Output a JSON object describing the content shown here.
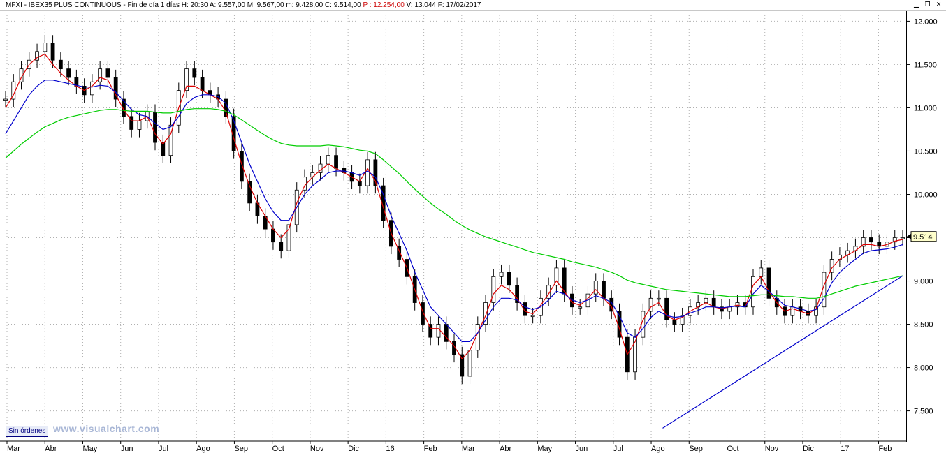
{
  "header": {
    "symbol": "MFXI",
    "name": "IBEX35 PLUS CONTINUOUS",
    "period": "Fin de día 1 días",
    "h": "H: 20:30",
    "a": "A: 9.557,00",
    "m": "M: 9.567,00",
    "mi": "m: 9.428,00",
    "c": "C: 9.514,00",
    "p": "P : 12.254,00",
    "v": "V: 13.044",
    "f": "F: 17/02/2017"
  },
  "buttons": {
    "sin_ordenes": "Sin órdenes"
  },
  "watermark": "www.visualchart.com",
  "colors": {
    "candles": "#000000",
    "ma_fast": "#dd0000",
    "ma_mid": "#0000cc",
    "ma_slow": "#00cc00",
    "trendline": "#0000cc",
    "grid": "#b0b0b0"
  },
  "chart_data": {
    "type": "line",
    "title": "MFXI - IBEX35 PLUS CONTINUOUS",
    "xlabel": "",
    "ylabel": "",
    "ylim": [
      7150,
      12100
    ],
    "y_ticks": [
      "12.000",
      "11.500",
      "11.000",
      "10.500",
      "10.000",
      "9.500",
      "9.000",
      "8.500",
      "8.000",
      "7.500"
    ],
    "y_tick_values": [
      12000,
      11500,
      11000,
      10500,
      10000,
      9500,
      9000,
      8500,
      8000,
      7500
    ],
    "x_ticks": [
      "Mar",
      "Abr",
      "May",
      "Jun",
      "Jul",
      "Ago",
      "Sep",
      "Oct",
      "Nov",
      "Dic",
      "16",
      "Feb",
      "Mar",
      "Abr",
      "May",
      "Jun",
      "Jul",
      "Ago",
      "Sep",
      "Oct",
      "Nov",
      "Dic",
      "17",
      "Feb"
    ],
    "last_price_label": "9.514",
    "last_price": 9514,
    "grid": true,
    "series": [
      {
        "type": "candlestick",
        "close": [
          11100,
          11300,
          11450,
          11550,
          11650,
          11750,
          11550,
          11450,
          11350,
          11250,
          11150,
          11300,
          11450,
          11350,
          11100,
          10900,
          10750,
          10850,
          10950,
          10600,
          10450,
          10800,
          11200,
          11450,
          11350,
          11200,
          11150,
          11100,
          10900,
          10500,
          10150,
          9900,
          9750,
          9600,
          9450,
          9350,
          9650,
          10050,
          10200,
          10250,
          10350,
          10450,
          10300,
          10250,
          10150,
          10100,
          10400,
          10100,
          9700,
          9400,
          9250,
          9050,
          8750,
          8500,
          8350,
          8500,
          8300,
          8150,
          7900,
          8200,
          8500,
          8750,
          9050,
          9100,
          8950,
          8750,
          8600,
          8600,
          8800,
          8950,
          9150,
          8850,
          8700,
          8700,
          8850,
          9000,
          8800,
          8650,
          8350,
          7950,
          8350,
          8650,
          8800,
          8800,
          8550,
          8500,
          8600,
          8700,
          8750,
          8800,
          8700,
          8650,
          8700,
          8750,
          8700,
          9050,
          9150,
          8800,
          8700,
          8600,
          8700,
          8650,
          8600,
          8700,
          9100,
          9250,
          9300,
          9350,
          9400,
          9500,
          9450,
          9400,
          9450,
          9500,
          9500
        ],
        "x_start": "2015-03",
        "x_end": "2017-02-17",
        "interval": "~5 trading days per sample"
      },
      {
        "type": "line",
        "role": "ma_fast",
        "values": [
          11000,
          11150,
          11350,
          11500,
          11580,
          11620,
          11500,
          11400,
          11320,
          11250,
          11200,
          11250,
          11350,
          11320,
          11150,
          10980,
          10850,
          10850,
          10900,
          10700,
          10580,
          10700,
          11000,
          11250,
          11250,
          11200,
          11150,
          11100,
          10950,
          10650,
          10350,
          10100,
          9900,
          9750,
          9600,
          9500,
          9600,
          9900,
          10100,
          10200,
          10280,
          10350,
          10300,
          10250,
          10200,
          10150,
          10300,
          10150,
          9850,
          9550,
          9350,
          9150,
          8900,
          8650,
          8450,
          8450,
          8350,
          8250,
          8100,
          8200,
          8400,
          8600,
          8850,
          8950,
          8900,
          8800,
          8650,
          8620,
          8720,
          8850,
          9000,
          8880,
          8750,
          8720,
          8800,
          8900,
          8800,
          8700,
          8450,
          8150,
          8300,
          8550,
          8700,
          8750,
          8600,
          8550,
          8580,
          8650,
          8700,
          8750,
          8700,
          8680,
          8700,
          8720,
          8700,
          8950,
          9050,
          8880,
          8750,
          8650,
          8680,
          8650,
          8620,
          8680,
          8950,
          9150,
          9250,
          9300,
          9350,
          9420,
          9420,
          9400,
          9420,
          9460,
          9480
        ]
      },
      {
        "type": "line",
        "role": "ma_mid",
        "values": [
          10700,
          10850,
          11000,
          11150,
          11250,
          11320,
          11320,
          11300,
          11280,
          11260,
          11240,
          11240,
          11260,
          11250,
          11180,
          11080,
          10980,
          10920,
          10900,
          10820,
          10750,
          10780,
          10900,
          11050,
          11120,
          11150,
          11150,
          11130,
          11050,
          10850,
          10600,
          10350,
          10150,
          9950,
          9800,
          9700,
          9700,
          9850,
          10000,
          10100,
          10170,
          10250,
          10270,
          10270,
          10250,
          10220,
          10270,
          10200,
          10000,
          9750,
          9550,
          9350,
          9100,
          8900,
          8700,
          8600,
          8500,
          8400,
          8300,
          8300,
          8400,
          8550,
          8700,
          8800,
          8800,
          8780,
          8700,
          8670,
          8700,
          8780,
          8880,
          8850,
          8780,
          8750,
          8780,
          8830,
          8800,
          8750,
          8600,
          8400,
          8350,
          8450,
          8580,
          8650,
          8600,
          8580,
          8590,
          8630,
          8660,
          8700,
          8700,
          8690,
          8700,
          8710,
          8700,
          8850,
          8950,
          8880,
          8800,
          8720,
          8700,
          8680,
          8650,
          8670,
          8800,
          8980,
          9100,
          9180,
          9250,
          9320,
          9350,
          9360,
          9370,
          9390,
          9420
        ]
      },
      {
        "type": "line",
        "role": "ma_slow",
        "values": [
          10420,
          10500,
          10580,
          10650,
          10720,
          10780,
          10820,
          10860,
          10890,
          10910,
          10930,
          10950,
          10970,
          10980,
          10980,
          10970,
          10960,
          10960,
          10960,
          10950,
          10940,
          10940,
          10960,
          10980,
          10990,
          10990,
          10990,
          10980,
          10960,
          10920,
          10860,
          10800,
          10740,
          10680,
          10630,
          10590,
          10570,
          10560,
          10560,
          10560,
          10560,
          10570,
          10560,
          10550,
          10530,
          10510,
          10500,
          10470,
          10400,
          10320,
          10240,
          10150,
          10060,
          9980,
          9900,
          9830,
          9770,
          9700,
          9640,
          9590,
          9550,
          9510,
          9480,
          9450,
          9420,
          9390,
          9360,
          9330,
          9310,
          9290,
          9270,
          9250,
          9220,
          9200,
          9180,
          9160,
          9130,
          9100,
          9060,
          9010,
          8980,
          8960,
          8940,
          8920,
          8900,
          8890,
          8880,
          8870,
          8860,
          8850,
          8840,
          8830,
          8820,
          8820,
          8820,
          8830,
          8840,
          8840,
          8830,
          8820,
          8820,
          8810,
          8800,
          8800,
          8820,
          8850,
          8880,
          8910,
          8940,
          8960,
          8980,
          9000,
          9020,
          9040,
          9060
        ]
      },
      {
        "type": "line",
        "role": "trendline",
        "x": [
          "2016-06-27",
          "2017-02-17"
        ],
        "values": [
          7300,
          9060
        ]
      }
    ]
  }
}
